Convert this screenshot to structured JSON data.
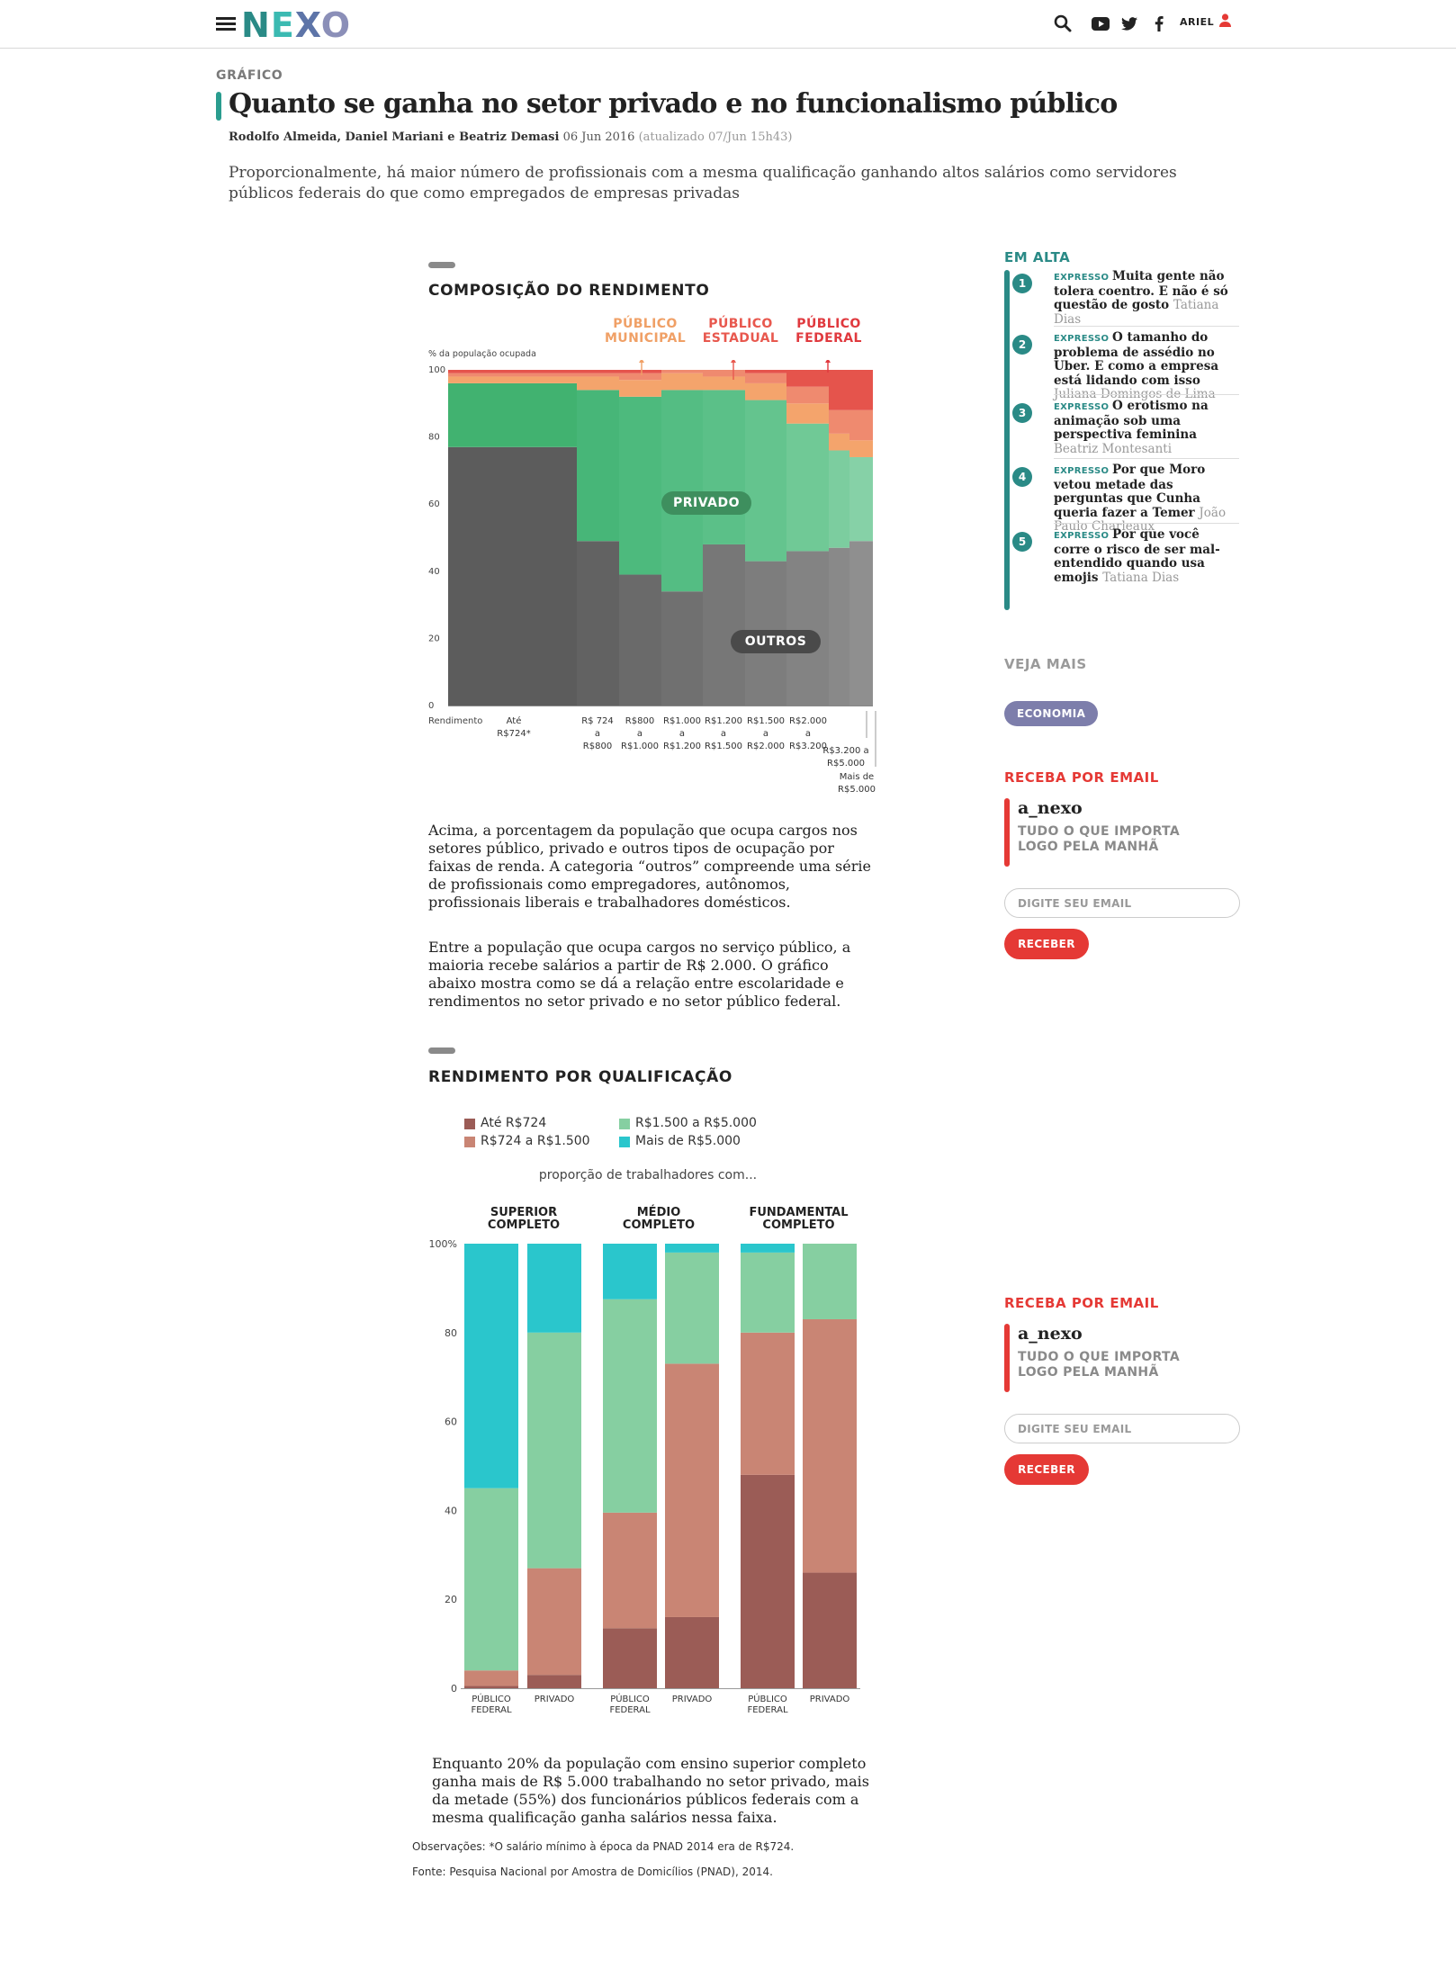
{
  "header": {
    "logo": "NEXO",
    "user_name": "ARIEL",
    "icons": [
      "menu-icon",
      "search-icon",
      "youtube-icon",
      "twitter-icon",
      "facebook-icon",
      "user-icon"
    ]
  },
  "article": {
    "kicker": "GRÁFICO",
    "title": "Quanto se ganha no setor privado e no funcionalismo público",
    "authors": "Rodolfo Almeida, Daniel Mariani e Beatriz Demasi",
    "date": "06 Jun 2016",
    "updated": "(atualizado 07/Jun 15h43)",
    "lede": "Proporcionalmente, há maior número de profissionais com a mesma qualificação ganhando altos salários como servidores públicos federais do que como empregados de empresas privadas",
    "section1_title": "COMPOSIÇÃO DO RENDIMENTO",
    "para1": "Acima, a porcentagem da população que ocupa cargos nos setores público, privado e outros tipos de ocupação por faixas de renda. A categoria “outros” compreende uma série de profissionais como empregadores, autônomos, profissionais liberais e trabalhadores domésticos.",
    "para2": "Entre a população que ocupa cargos no serviço público, a maioria recebe salários a partir de R$ 2.000. O gráfico abaixo mostra como se dá a relação entre escolaridade e rendimentos no setor privado e no setor público federal.",
    "section2_title": "RENDIMENTO POR QUALIFICAÇÃO",
    "para3": "Enquanto 20% da população com ensino superior completo ganha mais de R$ 5.000 trabalhando no setor privado, mais da metade (55%) dos funcionários públicos federais com a mesma qualificação ganha salários nessa faixa.",
    "note": "Observações: *O salário mínimo à época da PNAD 2014 era de R$724.",
    "source": "Fonte: Pesquisa Nacional por Amostra de Domicílios (PNAD), 2014."
  },
  "chart_data": [
    {
      "type": "area",
      "title": "COMPOSIÇÃO DO RENDIMENTO",
      "ylabel": "% da população ocupada",
      "ylim": [
        0,
        100
      ],
      "yticks": [
        0,
        20,
        40,
        60,
        80,
        100
      ],
      "x_axis_title": "Rendimento",
      "categories": [
        "Até R$724*",
        "R$ 724 a R$800",
        "R$800 a R$1.000",
        "R$1.000 a R$1.200",
        "R$1.200 a R$1.500",
        "R$1.500 a R$2.000",
        "R$2.000 a R$3.200",
        "R$3.200 a R$5.000",
        "Mais de R$5.000"
      ],
      "category_labels": [
        [
          "Até",
          "R$724*"
        ],
        [
          "R$ 724",
          "a",
          "R$800"
        ],
        [
          "R$800",
          "a",
          "R$1.000"
        ],
        [
          "R$1.000",
          "a",
          "R$1.200"
        ],
        [
          "R$1.200",
          "a",
          "R$1.500"
        ],
        [
          "R$1.500",
          "a",
          "R$2.000"
        ],
        [
          "R$2.000",
          "a",
          "R$3.200"
        ],
        [
          "R$3.200 a",
          "R$5.000"
        ],
        [
          "Mais de",
          "R$5.000"
        ]
      ],
      "series": [
        {
          "name": "OUTROS",
          "color": "#5c5c5c",
          "values": [
            77,
            49,
            39,
            34,
            48,
            43,
            46,
            47,
            49
          ]
        },
        {
          "name": "PRIVADO",
          "color": "#45b774",
          "values": [
            19,
            45,
            53,
            60,
            46,
            48,
            38,
            29,
            25
          ]
        },
        {
          "name": "PÚBLICO MUNICIPAL",
          "color": "#f4a46c",
          "values": [
            2,
            4,
            5,
            5,
            4,
            5,
            6,
            5,
            5
          ]
        },
        {
          "name": "PÚBLICO ESTADUAL",
          "color": "#ef8a6f",
          "values": [
            1,
            1,
            2,
            1,
            2,
            3,
            5,
            7,
            9
          ]
        },
        {
          "name": "PÚBLICO FEDERAL",
          "color": "#e5544c",
          "values": [
            1,
            1,
            1,
            0,
            0,
            1,
            5,
            12,
            12
          ]
        }
      ],
      "annotations": [
        "PÚBLICO MUNICIPAL",
        "PÚBLICO ESTADUAL",
        "PÚBLICO FEDERAL",
        "PRIVADO",
        "OUTROS"
      ],
      "colors": {
        "municipal_label": "#f0a066",
        "estadual_label": "#e8584e",
        "federal_label": "#e0393e",
        "pill": "#4a4a4a"
      }
    },
    {
      "type": "bar",
      "stacked": true,
      "title": "RENDIMENTO POR QUALIFICAÇÃO",
      "subtitle": "proporção de trabalhadores com...",
      "ylim": [
        0,
        100
      ],
      "yticks": [
        "0",
        "20",
        "40",
        "60",
        "80",
        "100%"
      ],
      "legend": [
        {
          "name": "Até R$724",
          "color": "#9b5c56"
        },
        {
          "name": "R$724 a R$1.500",
          "color": "#c98574"
        },
        {
          "name": "R$1.500 a R$5.000",
          "color": "#86cfa1"
        },
        {
          "name": "Mais de R$5.000",
          "color": "#2ac6cc"
        }
      ],
      "groups": [
        "SUPERIOR COMPLETO",
        "MÉDIO COMPLETO",
        "FUNDAMENTAL COMPLETO"
      ],
      "bars": [
        {
          "group": 0,
          "label": "PÚBLICO FEDERAL",
          "values": [
            0.5,
            3.5,
            41,
            55
          ]
        },
        {
          "group": 0,
          "label": "PRIVADO",
          "values": [
            3,
            24,
            53,
            20
          ]
        },
        {
          "group": 1,
          "label": "PÚBLICO FEDERAL",
          "values": [
            13.5,
            26,
            48,
            12.5
          ]
        },
        {
          "group": 1,
          "label": "PRIVADO",
          "values": [
            16,
            57,
            25,
            2
          ]
        },
        {
          "group": 2,
          "label": "PÚBLICO FEDERAL",
          "values": [
            48,
            32,
            18,
            2
          ]
        },
        {
          "group": 2,
          "label": "PRIVADO",
          "values": [
            26,
            57,
            17,
            0
          ]
        }
      ]
    }
  ],
  "sidebar": {
    "trending_title": "EM ALTA",
    "trending": [
      {
        "num": "1",
        "tag": "EXPRESSO",
        "headline": "Muita gente não tolera coentro. E não é só questão de gosto",
        "author": "Tatiana Dias"
      },
      {
        "num": "2",
        "tag": "EXPRESSO",
        "headline": "O tamanho do problema de assédio no Uber. E como a empresa está lidando com isso",
        "author": "Juliana Domingos de Lima"
      },
      {
        "num": "3",
        "tag": "EXPRESSO",
        "headline": "O erotismo na animação sob uma perspectiva feminina",
        "author": "Beatriz Montesanti"
      },
      {
        "num": "4",
        "tag": "EXPRESSO",
        "headline": "Por que Moro vetou metade das perguntas que Cunha queria fazer a Temer",
        "author": "João Paulo Charleaux"
      },
      {
        "num": "5",
        "tag": "EXPRESSO",
        "headline": "Por que você corre o risco de ser mal-entendido quando usa emojis",
        "author": "Tatiana Dias"
      }
    ],
    "see_more_title": "VEJA MAIS",
    "see_more_tag": "ECONOMIA",
    "newsletter": {
      "title": "RECEBA POR EMAIL",
      "name": "a_nexo",
      "description": "TUDO O QUE IMPORTA LOGO PELA MANHÃ",
      "placeholder": "DIGITE SEU EMAIL",
      "button": "RECEBER"
    },
    "colors": {
      "trending": "#2a8a86",
      "newsletter": "#e53935",
      "tag": "#7d7eab"
    }
  }
}
